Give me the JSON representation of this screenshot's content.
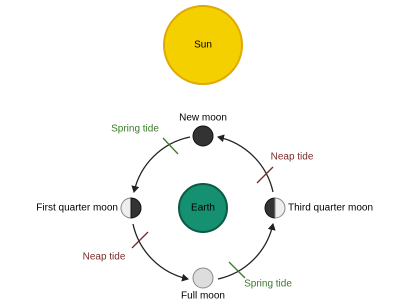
{
  "sun": {
    "label": "Sun"
  },
  "earth": {
    "label": "Earth"
  },
  "moons": [
    {
      "label": "New moon"
    },
    {
      "label": "First quarter moon"
    },
    {
      "label": "Full moon"
    },
    {
      "label": "Third quarter moon"
    }
  ],
  "tides": [
    {
      "label": "Spring tide"
    },
    {
      "label": "Neap tide"
    },
    {
      "label": "Spring tide"
    },
    {
      "label": "Neap tide"
    }
  ]
}
